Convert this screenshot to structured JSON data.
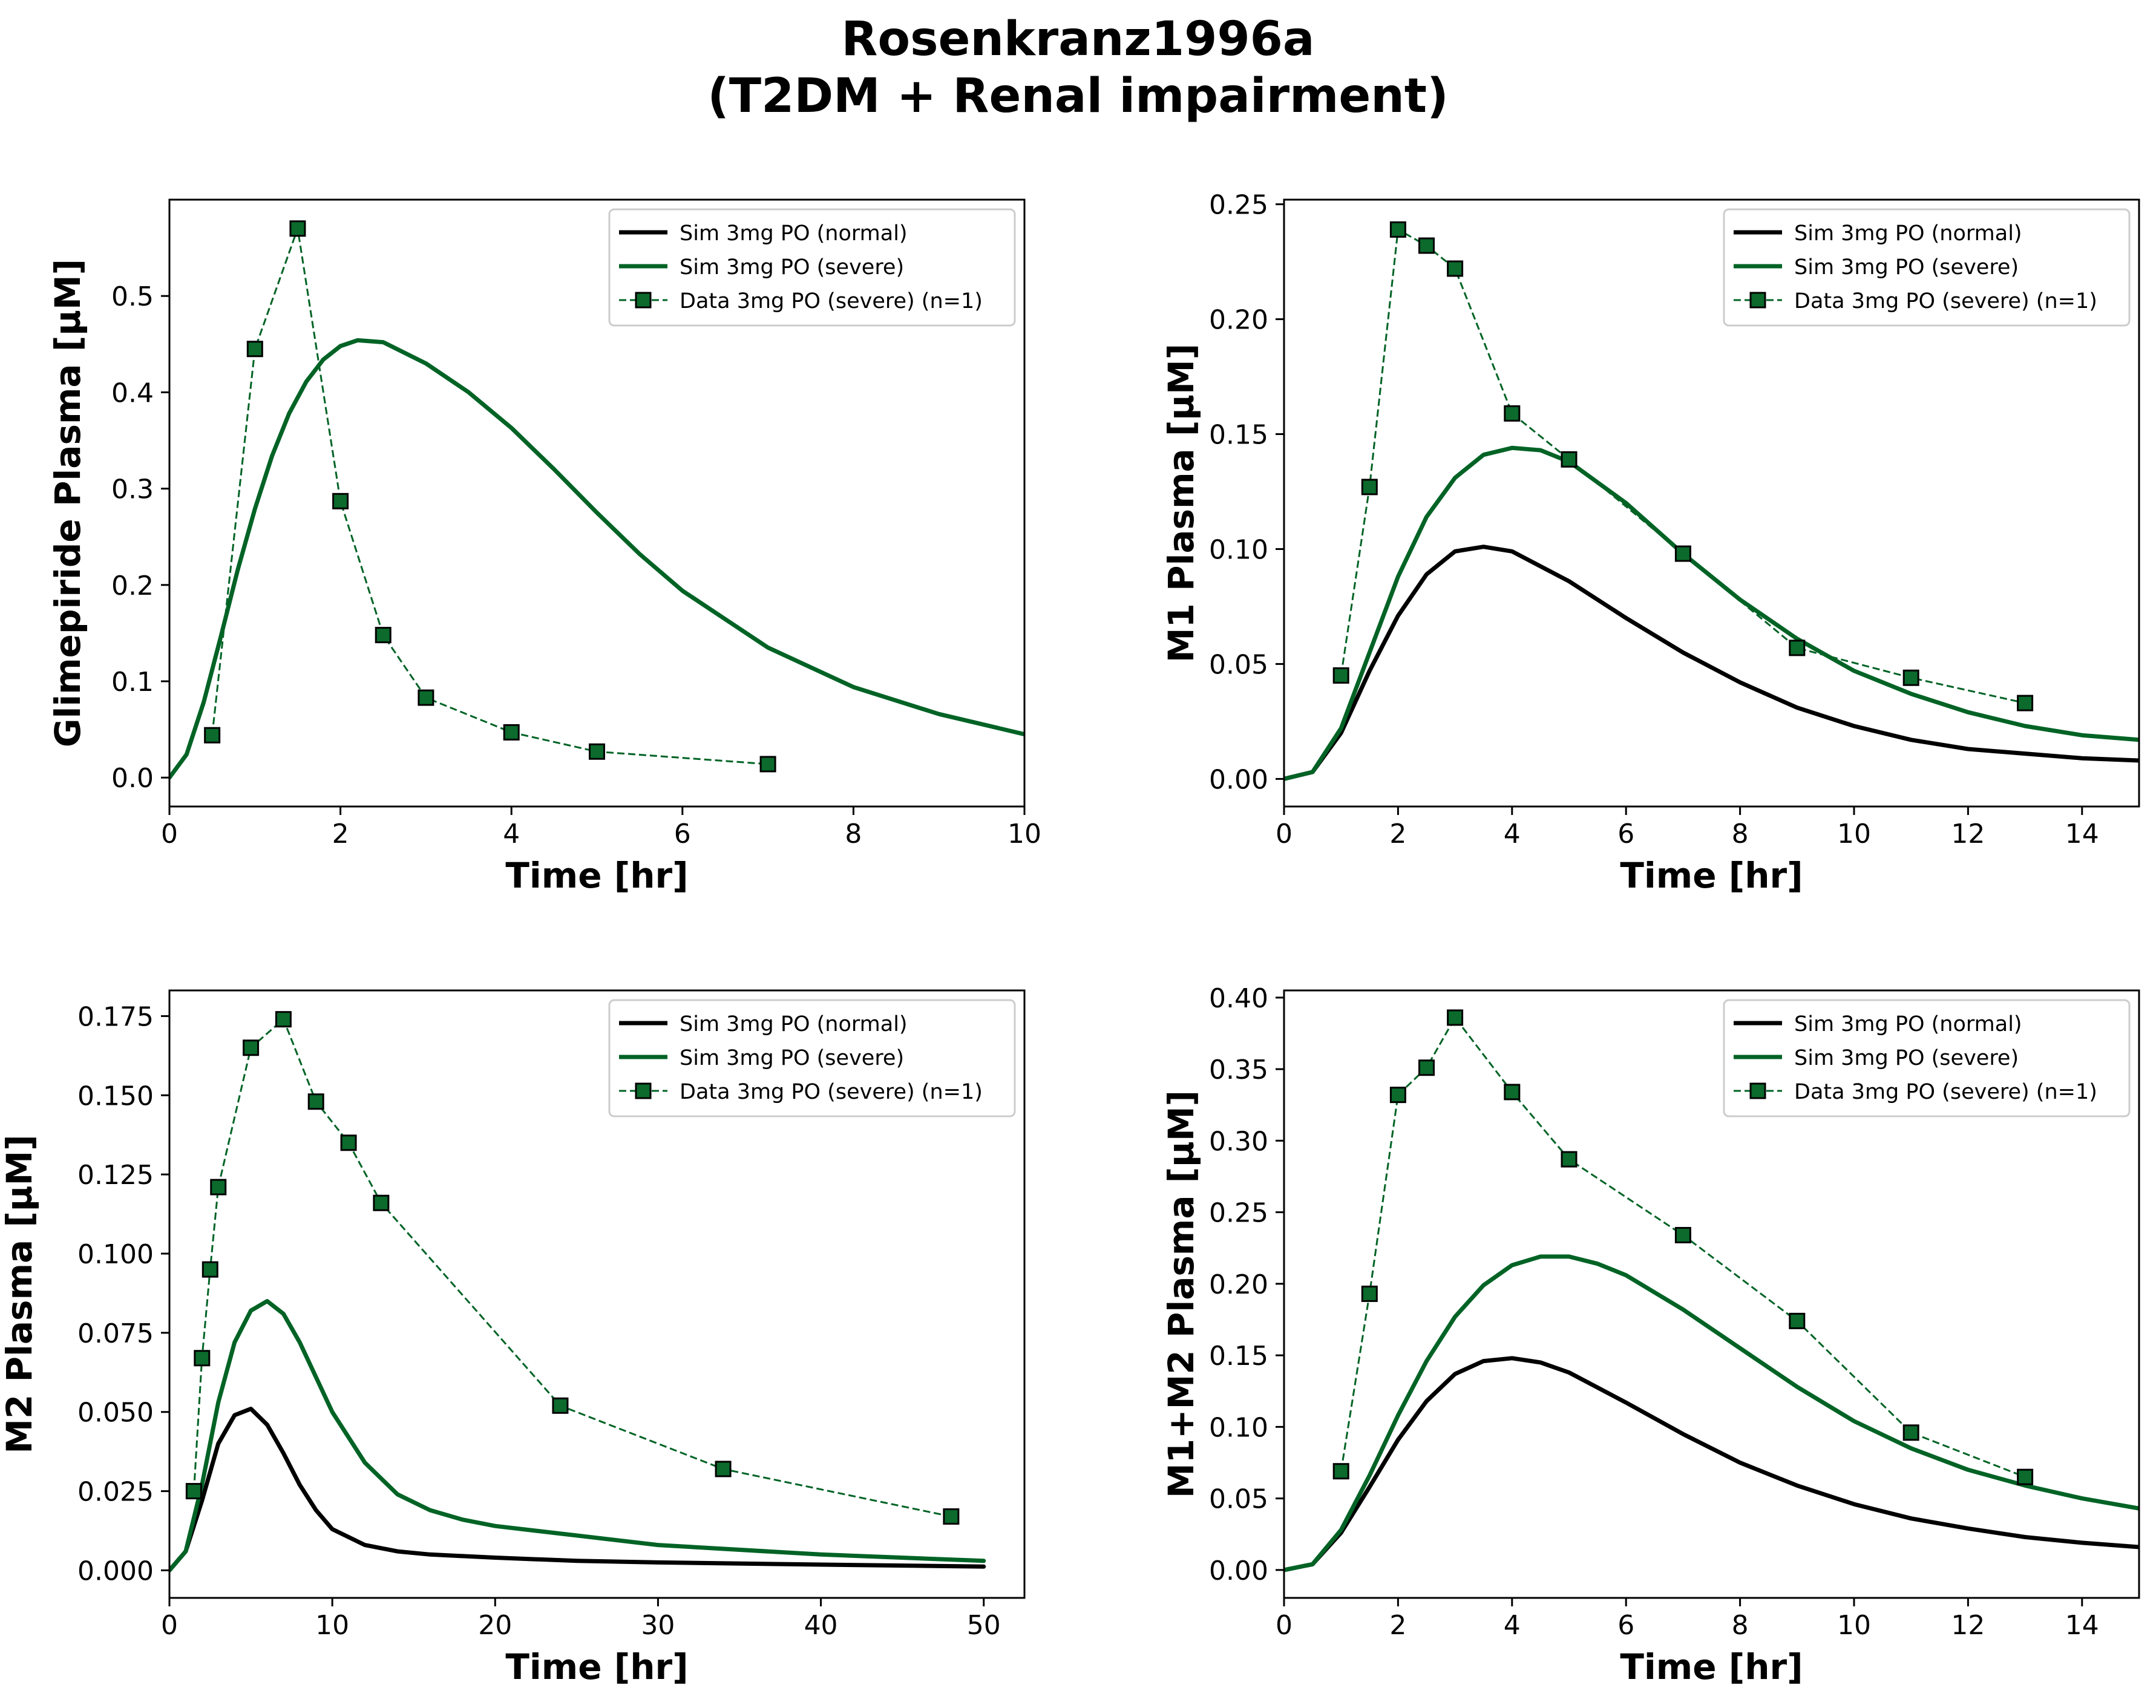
{
  "figure": {
    "title_line1": "Rosenkranz1996a",
    "title_line2": "(T2DM + Renal impairment)"
  },
  "colors": {
    "normal": "#000000",
    "severe": "#006325",
    "marker_face": "#0b6a2c",
    "marker_edge": "#000000"
  },
  "legend": [
    "Sim 3mg PO (normal)",
    "Sim 3mg PO (severe)",
    "Data 3mg PO (severe) (n=1)"
  ],
  "chart_data": [
    {
      "type": "line",
      "ylabel": "Glimepiride Plasma [µM]",
      "xlabel": "Time [hr]",
      "xlim": [
        0,
        10
      ],
      "ylim": [
        -0.03,
        0.6
      ],
      "xticks": [
        0,
        2,
        4,
        6,
        8,
        10
      ],
      "xtick_labels": [
        "0",
        "2",
        "4",
        "6",
        "8",
        "10"
      ],
      "yticks": [
        0,
        0.1,
        0.2,
        0.3,
        0.4,
        0.5
      ],
      "ytick_labels": [
        "0.0",
        "0.1",
        "0.2",
        "0.3",
        "0.4",
        "0.5"
      ],
      "legend_position": "upper-right",
      "series": [
        {
          "name": "Sim 3mg PO (normal)",
          "style": "line",
          "color": "#000000",
          "visible": false,
          "x": [],
          "y": []
        },
        {
          "name": "Sim 3mg PO (severe)",
          "style": "line",
          "color": "#006325",
          "x": [
            0,
            0.2,
            0.4,
            0.6,
            0.8,
            1.0,
            1.2,
            1.4,
            1.6,
            1.8,
            2.0,
            2.2,
            2.5,
            3.0,
            3.5,
            4.0,
            4.5,
            5.0,
            5.5,
            6.0,
            7.0,
            8.0,
            9.0,
            10.0
          ],
          "y": [
            0,
            0.024,
            0.078,
            0.146,
            0.216,
            0.279,
            0.334,
            0.378,
            0.411,
            0.434,
            0.448,
            0.454,
            0.452,
            0.43,
            0.4,
            0.363,
            0.32,
            0.275,
            0.232,
            0.194,
            0.135,
            0.094,
            0.066,
            0.045
          ]
        },
        {
          "name": "Data 3mg PO (severe) (n=1)",
          "style": "markers",
          "color": "#006325",
          "x": [
            0.5,
            1.0,
            1.5,
            2.0,
            2.5,
            3.0,
            4.0,
            5.0,
            7.0
          ],
          "y": [
            0.044,
            0.445,
            0.57,
            0.287,
            0.148,
            0.083,
            0.047,
            0.027,
            0.014
          ]
        }
      ]
    },
    {
      "type": "line",
      "ylabel": "M1 Plasma [µM]",
      "xlabel": "Time [hr]",
      "xlim": [
        0,
        15
      ],
      "ylim": [
        -0.012,
        0.252
      ],
      "xticks": [
        0,
        2,
        4,
        6,
        8,
        10,
        12,
        14
      ],
      "xtick_labels": [
        "0",
        "2",
        "4",
        "6",
        "8",
        "10",
        "12",
        "14"
      ],
      "yticks": [
        0,
        0.05,
        0.1,
        0.15,
        0.2,
        0.25
      ],
      "ytick_labels": [
        "0.00",
        "0.05",
        "0.10",
        "0.15",
        "0.20",
        "0.25"
      ],
      "legend_position": "upper-right",
      "series": [
        {
          "name": "Sim 3mg PO (normal)",
          "style": "line",
          "color": "#000000",
          "x": [
            0,
            0.5,
            1.0,
            1.5,
            2.0,
            2.5,
            3.0,
            3.5,
            4.0,
            5.0,
            6.0,
            7.0,
            8.0,
            9.0,
            10.0,
            11.0,
            12.0,
            13.0,
            14.0,
            15.0
          ],
          "y": [
            0,
            0.003,
            0.02,
            0.047,
            0.071,
            0.089,
            0.099,
            0.101,
            0.099,
            0.086,
            0.07,
            0.055,
            0.042,
            0.031,
            0.023,
            0.017,
            0.013,
            0.011,
            0.009,
            0.008
          ]
        },
        {
          "name": "Sim 3mg PO (severe)",
          "style": "line",
          "color": "#006325",
          "x": [
            0,
            0.5,
            1.0,
            1.5,
            2.0,
            2.5,
            3.0,
            3.5,
            4.0,
            4.5,
            5.0,
            6.0,
            7.0,
            8.0,
            9.0,
            10.0,
            11.0,
            12.0,
            13.0,
            14.0,
            15.0
          ],
          "y": [
            0,
            0.003,
            0.022,
            0.055,
            0.088,
            0.114,
            0.131,
            0.141,
            0.144,
            0.143,
            0.138,
            0.12,
            0.098,
            0.078,
            0.061,
            0.047,
            0.037,
            0.029,
            0.023,
            0.019,
            0.017
          ]
        },
        {
          "name": "Data 3mg PO (severe) (n=1)",
          "style": "markers",
          "color": "#006325",
          "x": [
            1.0,
            1.5,
            2.0,
            2.5,
            3.0,
            4.0,
            5.0,
            7.0,
            9.0,
            11.0,
            13.0
          ],
          "y": [
            0.045,
            0.127,
            0.239,
            0.232,
            0.222,
            0.159,
            0.139,
            0.098,
            0.057,
            0.044,
            0.033
          ]
        }
      ]
    },
    {
      "type": "line",
      "ylabel": "M2 Plasma [µM]",
      "xlabel": "Time [hr]",
      "xlim": [
        0,
        52.5
      ],
      "ylim": [
        -0.0087,
        0.1831
      ],
      "xticks": [
        0,
        10,
        20,
        30,
        40,
        50
      ],
      "xtick_labels": [
        "0",
        "10",
        "20",
        "30",
        "40",
        "50"
      ],
      "yticks": [
        0,
        0.025,
        0.05,
        0.075,
        0.1,
        0.125,
        0.15,
        0.175
      ],
      "ytick_labels": [
        "0.000",
        "0.025",
        "0.050",
        "0.075",
        "0.100",
        "0.125",
        "0.150",
        "0.175"
      ],
      "legend_position": "upper-right",
      "series": [
        {
          "name": "Sim 3mg PO (normal)",
          "style": "line",
          "color": "#000000",
          "x": [
            0,
            1,
            2,
            3,
            4,
            5,
            6,
            7,
            8,
            9,
            10,
            12,
            14,
            16,
            20,
            25,
            30,
            40,
            50
          ],
          "y": [
            0,
            0.006,
            0.022,
            0.04,
            0.049,
            0.051,
            0.046,
            0.037,
            0.027,
            0.019,
            0.013,
            0.008,
            0.006,
            0.005,
            0.004,
            0.003,
            0.0025,
            0.0018,
            0.0012
          ]
        },
        {
          "name": "Sim 3mg PO (severe)",
          "style": "line",
          "color": "#006325",
          "x": [
            0,
            1,
            2,
            3,
            4,
            5,
            6,
            7,
            8,
            9,
            10,
            12,
            14,
            16,
            18,
            20,
            25,
            30,
            40,
            50
          ],
          "y": [
            0,
            0.006,
            0.027,
            0.053,
            0.072,
            0.082,
            0.085,
            0.081,
            0.072,
            0.061,
            0.05,
            0.034,
            0.024,
            0.019,
            0.016,
            0.014,
            0.011,
            0.008,
            0.005,
            0.003
          ]
        },
        {
          "name": "Data 3mg PO (severe) (n=1)",
          "style": "markers",
          "color": "#006325",
          "x": [
            1.5,
            2.0,
            2.5,
            3.0,
            5.0,
            7.0,
            9.0,
            11.0,
            13.0,
            24.0,
            34.0,
            48.0
          ],
          "y": [
            0.025,
            0.067,
            0.095,
            0.121,
            0.165,
            0.174,
            0.148,
            0.135,
            0.116,
            0.052,
            0.032,
            0.017
          ]
        }
      ]
    },
    {
      "type": "line",
      "ylabel": "M1+M2 Plasma [µM]",
      "xlabel": "Time [hr]",
      "xlim": [
        0,
        15
      ],
      "ylim": [
        -0.0195,
        0.405
      ],
      "xticks": [
        0,
        2,
        4,
        6,
        8,
        10,
        12,
        14
      ],
      "xtick_labels": [
        "0",
        "2",
        "4",
        "6",
        "8",
        "10",
        "12",
        "14"
      ],
      "yticks": [
        0,
        0.05,
        0.1,
        0.15,
        0.2,
        0.25,
        0.3,
        0.35,
        0.4
      ],
      "ytick_labels": [
        "0.00",
        "0.05",
        "0.10",
        "0.15",
        "0.20",
        "0.25",
        "0.30",
        "0.35",
        "0.40"
      ],
      "legend_position": "upper-right",
      "series": [
        {
          "name": "Sim 3mg PO (normal)",
          "style": "line",
          "color": "#000000",
          "x": [
            0,
            0.5,
            1.0,
            1.5,
            2.0,
            2.5,
            3.0,
            3.5,
            4.0,
            4.5,
            5.0,
            6.0,
            7.0,
            8.0,
            9.0,
            10.0,
            11.0,
            12.0,
            13.0,
            14.0,
            15.0
          ],
          "y": [
            0,
            0.004,
            0.026,
            0.058,
            0.091,
            0.118,
            0.137,
            0.146,
            0.148,
            0.145,
            0.138,
            0.117,
            0.095,
            0.075,
            0.059,
            0.046,
            0.036,
            0.029,
            0.023,
            0.019,
            0.016
          ]
        },
        {
          "name": "Sim 3mg PO (severe)",
          "style": "line",
          "color": "#006325",
          "x": [
            0,
            0.5,
            1.0,
            1.5,
            2.0,
            2.5,
            3.0,
            3.5,
            4.0,
            4.5,
            5.0,
            5.5,
            6.0,
            7.0,
            8.0,
            9.0,
            10.0,
            11.0,
            12.0,
            13.0,
            14.0,
            15.0
          ],
          "y": [
            0,
            0.004,
            0.028,
            0.066,
            0.108,
            0.146,
            0.177,
            0.199,
            0.213,
            0.219,
            0.219,
            0.214,
            0.206,
            0.182,
            0.155,
            0.128,
            0.104,
            0.085,
            0.07,
            0.059,
            0.05,
            0.043
          ]
        },
        {
          "name": "Data 3mg PO (severe) (n=1)",
          "style": "markers",
          "color": "#006325",
          "x": [
            1.0,
            1.5,
            2.0,
            2.5,
            3.0,
            4.0,
            5.0,
            7.0,
            9.0,
            11.0,
            13.0
          ],
          "y": [
            0.069,
            0.193,
            0.332,
            0.351,
            0.386,
            0.334,
            0.287,
            0.234,
            0.174,
            0.096,
            0.065
          ]
        }
      ]
    }
  ]
}
